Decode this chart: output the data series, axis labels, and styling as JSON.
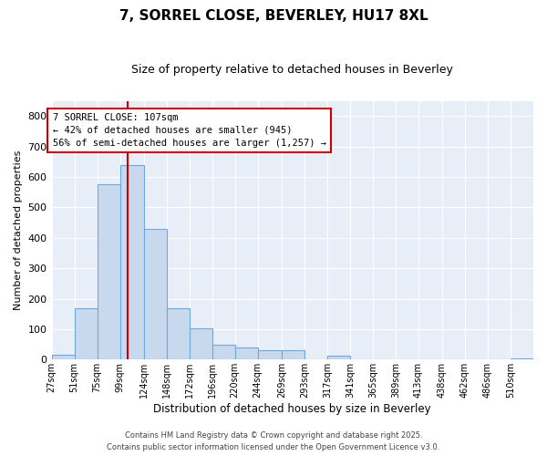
{
  "title": "7, SORREL CLOSE, BEVERLEY, HU17 8XL",
  "subtitle": "Size of property relative to detached houses in Beverley",
  "xlabel": "Distribution of detached houses by size in Beverley",
  "ylabel": "Number of detached properties",
  "bar_color": "#c9d9ed",
  "bar_edge_color": "#6fa8dc",
  "figure_bg": "#ffffff",
  "axes_bg": "#e8eef8",
  "grid_color": "#ffffff",
  "bins": [
    27,
    51,
    75,
    99,
    124,
    148,
    172,
    196,
    220,
    244,
    269,
    293,
    317,
    341,
    365,
    389,
    413,
    438,
    462,
    486,
    510
  ],
  "values": [
    15,
    170,
    575,
    640,
    430,
    170,
    103,
    50,
    40,
    32,
    32,
    0,
    12,
    0,
    0,
    0,
    0,
    0,
    0,
    0,
    5
  ],
  "tick_labels": [
    "27sqm",
    "51sqm",
    "75sqm",
    "99sqm",
    "124sqm",
    "148sqm",
    "172sqm",
    "196sqm",
    "220sqm",
    "244sqm",
    "269sqm",
    "293sqm",
    "317sqm",
    "341sqm",
    "365sqm",
    "389sqm",
    "413sqm",
    "438sqm",
    "462sqm",
    "486sqm",
    "510sqm"
  ],
  "vline_x": 107,
  "vline_color": "#cc0000",
  "annotation_text": "7 SORREL CLOSE: 107sqm\n← 42% of detached houses are smaller (945)\n56% of semi-detached houses are larger (1,257) →",
  "annotation_box_facecolor": "#ffffff",
  "annotation_box_edgecolor": "#cc0000",
  "ylim": [
    0,
    850
  ],
  "yticks": [
    0,
    100,
    200,
    300,
    400,
    500,
    600,
    700,
    800
  ],
  "footer_line1": "Contains HM Land Registry data © Crown copyright and database right 2025.",
  "footer_line2": "Contains public sector information licensed under the Open Government Licence v3.0."
}
